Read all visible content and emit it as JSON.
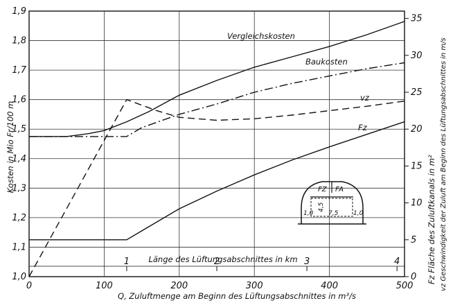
{
  "chart_data": {
    "type": "line",
    "xlabel": "Q, Zuluftmenge am Beginn des Lüftungsabschnittes in m³/s",
    "ylabel_left": "Kosten in Mio Fr/100 m",
    "ylabel_right_1": "Fz Fläche des Zuluftkanals in m²",
    "ylabel_right_2": "vz Geschwindigkeit der Zuluft am Beginn des Lüftungsabschnittes in m/s",
    "secondary_xlabel": "Länge des Lüftungsabschnittes in km",
    "xlim": [
      0,
      500
    ],
    "ylim_left": [
      1.0,
      1.9
    ],
    "ylim_right": [
      0,
      36
    ],
    "x_ticks": [
      "0",
      "100",
      "200",
      "300",
      "400",
      "500"
    ],
    "y_ticks_left": [
      "1,0",
      "1,1",
      "1,2",
      "1,3",
      "1,4",
      "1,5",
      "1,6",
      "1,7",
      "1,8",
      "1,9"
    ],
    "y_ticks_right": [
      "0",
      "5",
      "10",
      "15",
      "20",
      "25",
      "30",
      "35"
    ],
    "secondary_x_ticks": [
      {
        "label": "1",
        "x": 130
      },
      {
        "label": "2",
        "x": 250
      },
      {
        "label": "3",
        "x": 370
      },
      {
        "label": "4",
        "x": 490
      }
    ],
    "grid": true,
    "series": [
      {
        "name": "Vergleichskosten",
        "axis": "left",
        "style": "solid",
        "points": [
          [
            0,
            1.475
          ],
          [
            50,
            1.475
          ],
          [
            80,
            1.485
          ],
          [
            100,
            1.495
          ],
          [
            130,
            1.525
          ],
          [
            160,
            1.56
          ],
          [
            200,
            1.615
          ],
          [
            250,
            1.665
          ],
          [
            300,
            1.71
          ],
          [
            350,
            1.745
          ],
          [
            400,
            1.78
          ],
          [
            450,
            1.82
          ],
          [
            500,
            1.865
          ]
        ]
      },
      {
        "name": "Baukosten",
        "axis": "left",
        "style": "dashdot",
        "points": [
          [
            0,
            1.475
          ],
          [
            130,
            1.475
          ],
          [
            150,
            1.505
          ],
          [
            200,
            1.55
          ],
          [
            250,
            1.585
          ],
          [
            300,
            1.625
          ],
          [
            350,
            1.655
          ],
          [
            400,
            1.68
          ],
          [
            450,
            1.705
          ],
          [
            500,
            1.725
          ]
        ]
      },
      {
        "name": "vz",
        "axis": "right",
        "style": "dashed",
        "points": [
          [
            0,
            0
          ],
          [
            130,
            24
          ],
          [
            170,
            22.5
          ],
          [
            200,
            21.6
          ],
          [
            250,
            21.2
          ],
          [
            300,
            21.4
          ],
          [
            350,
            21.9
          ],
          [
            400,
            22.5
          ],
          [
            450,
            23.1
          ],
          [
            500,
            23.8
          ]
        ]
      },
      {
        "name": "Fz",
        "axis": "right",
        "style": "solid",
        "points": [
          [
            0,
            5
          ],
          [
            130,
            5
          ],
          [
            150,
            6.2
          ],
          [
            200,
            9.2
          ],
          [
            250,
            11.6
          ],
          [
            300,
            13.8
          ],
          [
            350,
            15.8
          ],
          [
            400,
            17.6
          ],
          [
            450,
            19.3
          ],
          [
            500,
            21
          ]
        ]
      }
    ],
    "inset": {
      "labels": [
        "FZ",
        "FA"
      ],
      "dimensions": [
        "1,0",
        "4,5",
        "7,5",
        "1,0"
      ]
    }
  }
}
